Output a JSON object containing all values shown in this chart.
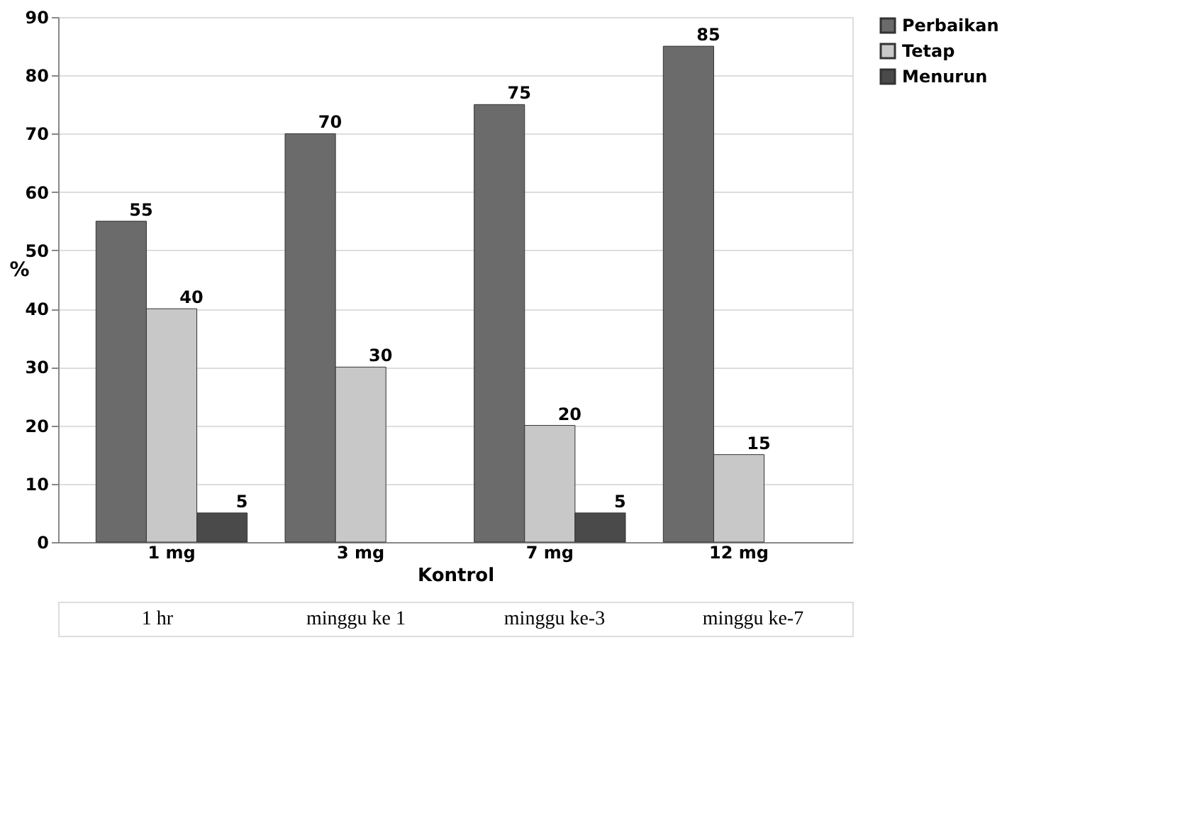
{
  "chart_data": {
    "type": "bar",
    "xlabel": "Kontrol",
    "ylabel": "%",
    "categories": [
      "1 mg",
      "3 mg",
      "7 mg",
      "12 mg"
    ],
    "series": [
      {
        "name": "Perbaikan",
        "color": "#6b6b6b",
        "values": [
          55,
          70,
          75,
          85
        ]
      },
      {
        "name": "Tetap",
        "color": "#c8c8c8",
        "values": [
          40,
          30,
          20,
          15
        ]
      },
      {
        "name": "Menurun",
        "color": "#4a4a4a",
        "values": [
          5,
          null,
          5,
          null
        ]
      }
    ],
    "ylim": [
      0,
      90
    ],
    "yticks": [
      0,
      10,
      20,
      30,
      40,
      50,
      60,
      70,
      80,
      90
    ],
    "grid": "y",
    "legend": "right",
    "data_labels": true,
    "annotations": [
      "1 hr",
      "minggu ke 1",
      "minggu ke-3",
      "minggu ke-7"
    ]
  }
}
